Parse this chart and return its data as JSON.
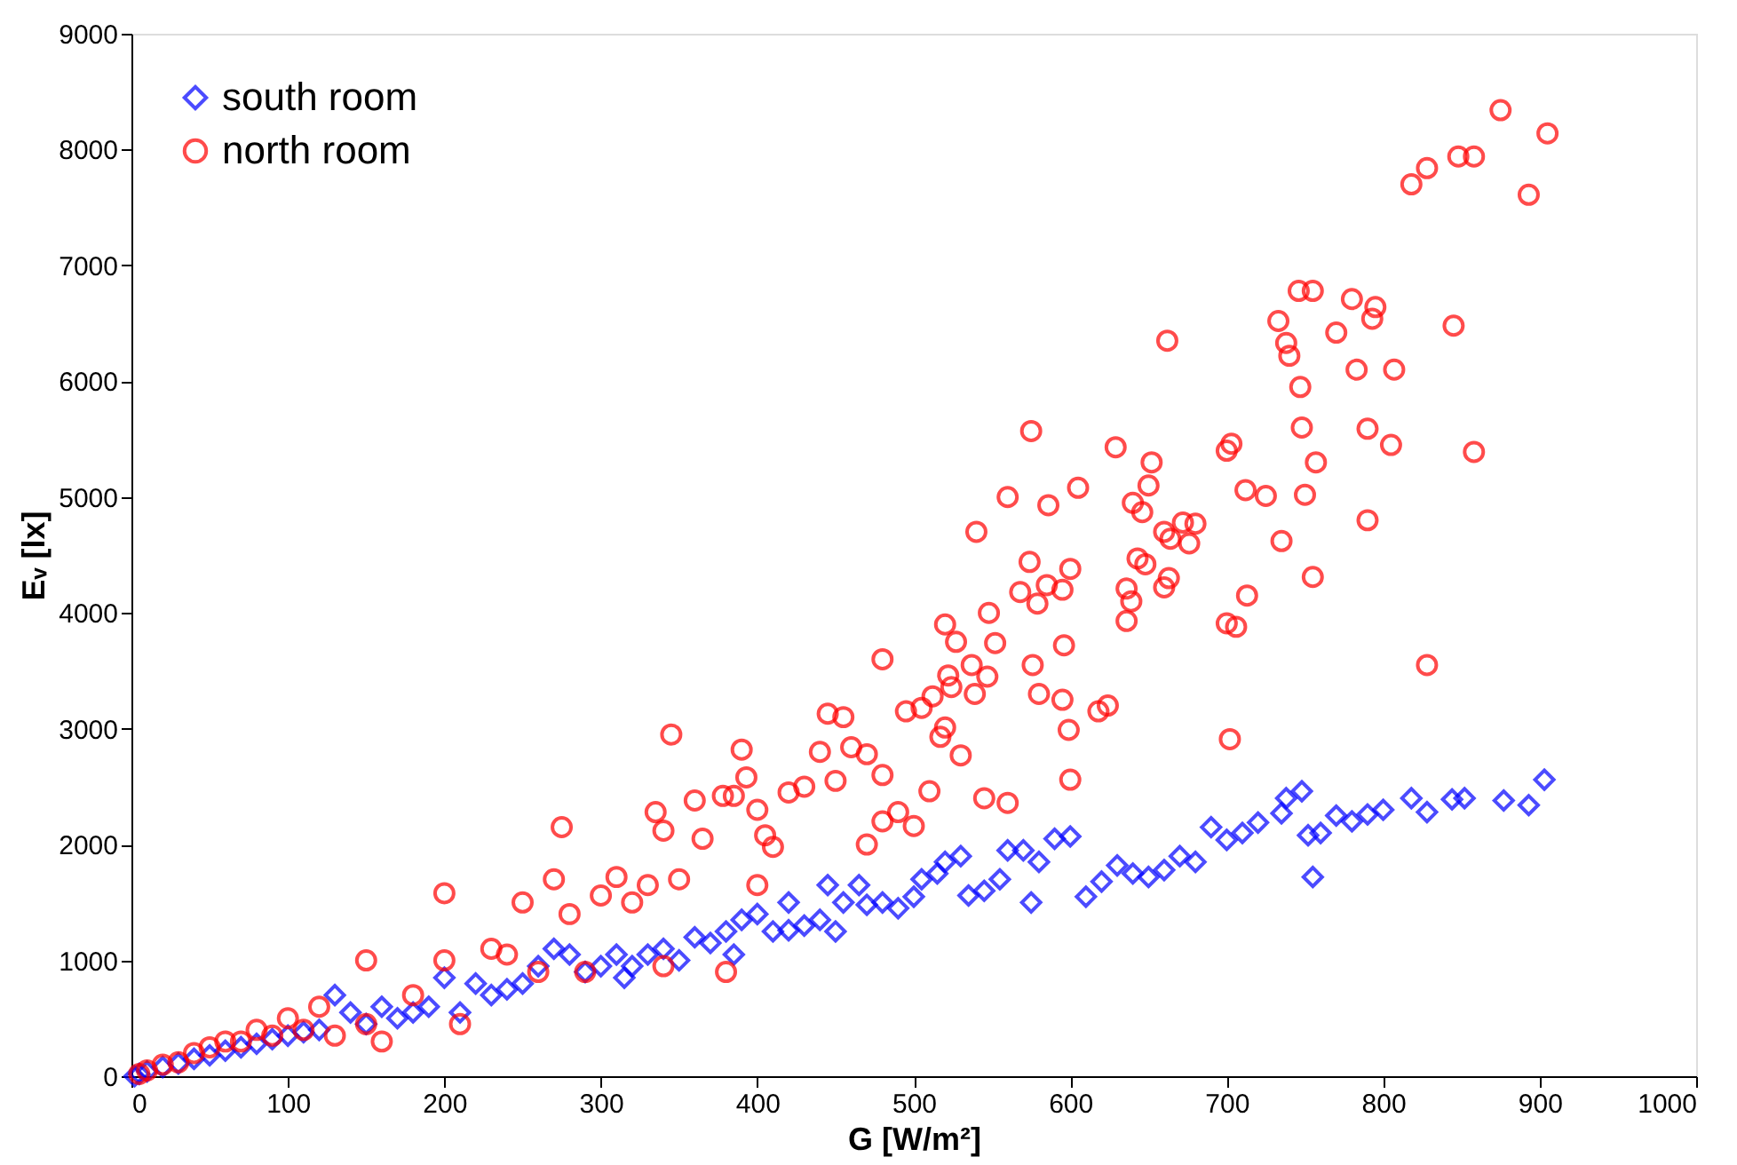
{
  "chart_data": {
    "type": "scatter",
    "xlabel": "G [W/m²]",
    "ylabel": "Eᵥ [lx]",
    "xlim": [
      0,
      1000
    ],
    "xticks": [
      0,
      100,
      200,
      300,
      400,
      500,
      600,
      700,
      800,
      900,
      1000
    ],
    "ylim": [
      0,
      9000
    ],
    "yticks": [
      0,
      1000,
      2000,
      3000,
      4000,
      5000,
      6000,
      7000,
      8000,
      9000
    ],
    "grid": false,
    "legend": "top left",
    "series": [
      {
        "name": "south room",
        "color": "#0000ff",
        "marker": "diamond",
        "x": [
          903,
          893,
          877,
          852,
          844,
          828,
          818,
          800,
          790,
          780,
          770,
          760,
          752,
          755,
          748,
          738,
          735,
          720,
          710,
          700,
          690,
          680,
          670,
          660,
          650,
          640,
          630,
          620,
          610,
          600,
          590,
          580,
          575,
          570,
          560,
          555,
          545,
          535,
          530,
          520,
          515,
          505,
          500,
          490,
          480,
          470,
          465,
          455,
          450,
          440,
          430,
          420,
          410,
          400,
          390,
          380,
          370,
          360,
          350,
          340,
          330,
          320,
          310,
          300,
          290,
          280,
          270,
          260,
          250,
          240,
          230,
          220,
          210,
          200,
          190,
          180,
          170,
          160,
          150,
          140,
          130,
          120,
          110,
          100,
          90,
          80,
          70,
          60,
          50,
          40,
          30,
          20,
          10,
          5,
          2,
          420,
          445,
          385,
          315
        ],
        "values": [
          2560,
          2340,
          2380,
          2400,
          2390,
          2280,
          2400,
          2300,
          2260,
          2200,
          2250,
          2100,
          2080,
          1720,
          2460,
          2400,
          2270,
          2190,
          2100,
          2040,
          2150,
          1850,
          1900,
          1780,
          1720,
          1750,
          1820,
          1680,
          1550,
          2070,
          2050,
          1850,
          1500,
          1950,
          1950,
          1700,
          1600,
          1560,
          1900,
          1850,
          1750,
          1700,
          1550,
          1450,
          1500,
          1480,
          1650,
          1500,
          1250,
          1350,
          1300,
          1260,
          1250,
          1400,
          1350,
          1250,
          1150,
          1200,
          1000,
          1100,
          1050,
          950,
          1050,
          950,
          900,
          1050,
          1100,
          950,
          800,
          750,
          700,
          800,
          550,
          850,
          600,
          550,
          500,
          600,
          450,
          550,
          700,
          400,
          380,
          350,
          320,
          280,
          250,
          220,
          180,
          150,
          110,
          80,
          40,
          20,
          0,
          1500,
          1650,
          1050,
          850
        ]
      },
      {
        "name": "north room",
        "color": "#ff0000",
        "marker": "circle",
        "x": [
          875,
          905,
          858,
          848,
          828,
          818,
          893,
          845,
          858,
          828,
          662,
          746,
          755,
          733,
          738,
          740,
          780,
          795,
          793,
          807,
          747,
          770,
          783,
          748,
          790,
          805,
          790,
          755,
          735,
          750,
          757,
          712,
          703,
          700,
          700,
          706,
          702,
          713,
          725,
          680,
          676,
          672,
          664,
          660,
          652,
          650,
          640,
          646,
          648,
          660,
          663,
          639,
          636,
          643,
          636,
          624,
          618,
          629,
          605,
          575,
          560,
          586,
          574,
          579,
          600,
          585,
          595,
          596,
          576,
          580,
          595,
          599,
          600,
          540,
          568,
          548,
          537,
          520,
          527,
          522,
          512,
          524,
          539,
          547,
          552,
          480,
          505,
          495,
          520,
          517,
          530,
          545,
          560,
          510,
          500,
          490,
          480,
          470,
          445,
          455,
          460,
          470,
          480,
          440,
          430,
          450,
          420,
          390,
          393,
          385,
          378,
          400,
          345,
          335,
          340,
          360,
          365,
          310,
          300,
          275,
          270,
          250,
          200,
          150,
          320,
          330,
          350,
          400,
          410,
          405,
          280,
          230,
          240,
          260,
          290,
          340,
          380,
          180,
          200,
          120,
          100,
          80,
          60,
          40,
          20,
          10,
          5,
          130,
          160,
          210,
          150,
          110,
          90,
          70,
          50,
          30
        ],
        "values": [
          8340,
          8140,
          7940,
          7940,
          7840,
          7700,
          7610,
          6480,
          5390,
          3550,
          6350,
          6780,
          6780,
          6520,
          6330,
          6220,
          6710,
          6640,
          6540,
          6100,
          5950,
          6420,
          6100,
          5600,
          5590,
          5450,
          4800,
          4310,
          4620,
          5020,
          5300,
          5060,
          5460,
          5400,
          3910,
          3880,
          2910,
          4150,
          5010,
          4770,
          4600,
          4780,
          4640,
          4700,
          5300,
          5100,
          4950,
          4870,
          4420,
          4220,
          4300,
          4100,
          4210,
          4470,
          3930,
          3200,
          3150,
          5430,
          5080,
          5570,
          5000,
          4930,
          4440,
          4080,
          4380,
          4240,
          4200,
          3720,
          3550,
          3300,
          3250,
          2990,
          2560,
          4700,
          4180,
          4000,
          3550,
          3900,
          3750,
          3460,
          3280,
          3360,
          3300,
          3450,
          3740,
          3600,
          3180,
          3150,
          3010,
          2930,
          2770,
          2400,
          2360,
          2460,
          2160,
          2280,
          2200,
          2000,
          3130,
          3100,
          2840,
          2780,
          2600,
          2800,
          2500,
          2550,
          2450,
          2820,
          2580,
          2420,
          2420,
          2300,
          2950,
          2280,
          2120,
          2380,
          2050,
          1720,
          1560,
          2150,
          1700,
          1500,
          1580,
          1000,
          1500,
          1650,
          1700,
          1650,
          1980,
          2080,
          1400,
          1100,
          1050,
          900,
          900,
          950,
          900,
          700,
          1000,
          600,
          500,
          400,
          300,
          200,
          100,
          50,
          20,
          350,
          300,
          450,
          450,
          400,
          350,
          300,
          250,
          120
        ]
      }
    ]
  }
}
